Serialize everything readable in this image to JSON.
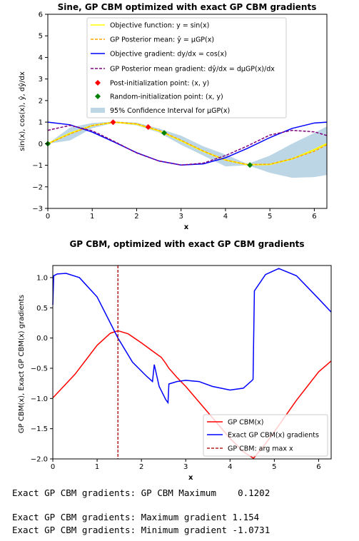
{
  "chart_data": [
    {
      "type": "line",
      "title": "Sine, GP CBM optimized with exact GP CBM gradients",
      "xlabel": "x",
      "ylabel": "sin(x), cos(x), ŷ, dŷ/dx",
      "xlim": [
        0,
        6.283
      ],
      "ylim": [
        -3,
        6
      ],
      "xticks": [
        "0",
        "1",
        "2",
        "3",
        "4",
        "5",
        "6"
      ],
      "yticks": [
        "−3",
        "−2",
        "−1",
        "0",
        "1",
        "2",
        "3",
        "4",
        "5",
        "6"
      ],
      "grid": false,
      "legend_position": "top",
      "legend": [
        "Objective function: y = sin(x)",
        "GP Posterior mean: ŷ = μGP(x)",
        "Objective gradient: dy/dx = cos(x)",
        "GP Posterior mean gradient: dŷ/dx = dμGP(x)/dx",
        "Post-initialization point: (x, y)",
        "Random-initialization point: (x, y)",
        "95% Confidence Interval for μGP(x)"
      ],
      "colors": {
        "objective": "#ffff00",
        "mean": "#ffa500",
        "gradient": "#0000ff",
        "mean_gradient": "#800080",
        "post_points": "#ff0000",
        "random_points": "#008000",
        "ci": "#bcd6e6"
      },
      "series": [
        {
          "name": "sin",
          "x": [
            0,
            0.5,
            1,
            1.5,
            2,
            2.5,
            3,
            3.5,
            4,
            4.5,
            5,
            5.5,
            6,
            6.283
          ],
          "y": [
            0,
            0.479,
            0.841,
            0.997,
            0.909,
            0.598,
            0.141,
            -0.351,
            -0.757,
            -0.978,
            -0.959,
            -0.706,
            -0.279,
            0
          ]
        },
        {
          "name": "gp_mean",
          "x": [
            0,
            0.5,
            1,
            1.5,
            2,
            2.5,
            3,
            3.5,
            4,
            4.5,
            5,
            5.5,
            6,
            6.283
          ],
          "y": [
            0,
            0.45,
            0.84,
            1.0,
            0.92,
            0.62,
            0.16,
            -0.34,
            -0.76,
            -0.97,
            -0.95,
            -0.7,
            -0.35,
            -0.05
          ]
        },
        {
          "name": "cos",
          "x": [
            0,
            0.5,
            1,
            1.5,
            2,
            2.5,
            3,
            3.5,
            4,
            4.5,
            5,
            5.5,
            6,
            6.283
          ],
          "y": [
            1,
            0.878,
            0.54,
            0.071,
            -0.416,
            -0.801,
            -0.99,
            -0.936,
            -0.654,
            -0.211,
            0.284,
            0.709,
            0.96,
            1
          ]
        },
        {
          "name": "gp_mean_gradient",
          "x": [
            0,
            0.5,
            1,
            1.5,
            2,
            2.5,
            3,
            3.5,
            4,
            4.5,
            5,
            5.5,
            6,
            6.283
          ],
          "y": [
            0.62,
            0.85,
            0.6,
            0.1,
            -0.43,
            -0.8,
            -0.99,
            -0.9,
            -0.55,
            -0.1,
            0.4,
            0.62,
            0.55,
            0.38
          ]
        }
      ],
      "ci": {
        "x": [
          0,
          0.5,
          1,
          1.5,
          2,
          2.5,
          3,
          3.5,
          4,
          4.5,
          5,
          5.5,
          6,
          6.283
        ],
        "lower": [
          0,
          0.15,
          0.72,
          0.97,
          0.85,
          0.52,
          -0.05,
          -0.55,
          -1.05,
          -1.0,
          -1.35,
          -1.58,
          -1.55,
          -1.45
        ],
        "upper": [
          0,
          0.75,
          0.96,
          1.03,
          0.98,
          0.7,
          0.37,
          -0.12,
          -0.5,
          -0.94,
          -0.55,
          0.0,
          0.5,
          0.8
        ]
      },
      "points_post": [
        {
          "x": 1.47,
          "y": 0.995
        },
        {
          "x": 2.26,
          "y": 0.77
        }
      ],
      "points_random": [
        {
          "x": 0,
          "y": 0
        },
        {
          "x": 2.62,
          "y": 0.5
        },
        {
          "x": 4.55,
          "y": -0.99
        }
      ]
    },
    {
      "type": "line",
      "title": "GP CBM, optimized with exact GP CBM gradients",
      "xlabel": "x",
      "ylabel": "GP CBM(x), Exact GP CBM(x) gradients",
      "xlim": [
        0,
        6.283
      ],
      "ylim": [
        -2.0,
        1.2
      ],
      "xticks": [
        "0",
        "1",
        "2",
        "3",
        "4",
        "5",
        "6"
      ],
      "yticks": [
        "−2.0",
        "−1.5",
        "−1.0",
        "−0.5",
        "0.0",
        "0.5",
        "1.0"
      ],
      "grid": false,
      "legend_position": "lower-right",
      "legend": [
        "GP CBM(x)",
        "Exact GP CBM(x) gradients",
        "GP CBM: arg max x"
      ],
      "colors": {
        "cbm": "#ff0000",
        "gradients": "#0000ff",
        "argmax": "#b22222"
      },
      "series": [
        {
          "name": "cbm",
          "x": [
            0,
            0.5,
            1,
            1.3,
            1.47,
            1.7,
            2.0,
            2.26,
            2.45,
            2.55,
            2.62,
            2.8,
            3.0,
            3.5,
            4.0,
            4.3,
            4.53,
            4.8,
            5.0,
            5.5,
            6.0,
            6.283
          ],
          "y": [
            -0.99,
            -0.6,
            -0.12,
            0.08,
            0.12,
            0.07,
            -0.08,
            -0.22,
            -0.32,
            -0.42,
            -0.5,
            -0.65,
            -0.8,
            -1.23,
            -1.66,
            -1.88,
            -1.99,
            -1.75,
            -1.55,
            -1.03,
            -0.56,
            -0.38
          ]
        },
        {
          "name": "gradients",
          "x": [
            0,
            0.02,
            0.1,
            0.3,
            0.6,
            1.0,
            1.47,
            1.8,
            2.1,
            2.25,
            2.29,
            2.4,
            2.55,
            2.6,
            2.62,
            2.8,
            3.0,
            3.3,
            3.6,
            4.0,
            4.3,
            4.5,
            4.52,
            4.55,
            4.8,
            5.1,
            5.5,
            6.0,
            6.283
          ],
          "y": [
            0.55,
            1.03,
            1.06,
            1.07,
            1.0,
            0.68,
            0.0,
            -0.4,
            -0.62,
            -0.72,
            -0.44,
            -0.8,
            -1.02,
            -1.07,
            -0.76,
            -0.72,
            -0.7,
            -0.72,
            -0.8,
            -0.86,
            -0.83,
            -0.7,
            -0.68,
            0.78,
            1.05,
            1.15,
            1.03,
            0.65,
            0.43
          ]
        }
      ],
      "argmax_x": 1.47
    }
  ],
  "output_lines": [
    "Exact GP CBM gradients: GP CBM Maximum    0.1202",
    "",
    "Exact GP CBM gradients: Maximum gradient 1.154",
    "Exact GP CBM gradients: Minimum gradient -1.0731"
  ]
}
